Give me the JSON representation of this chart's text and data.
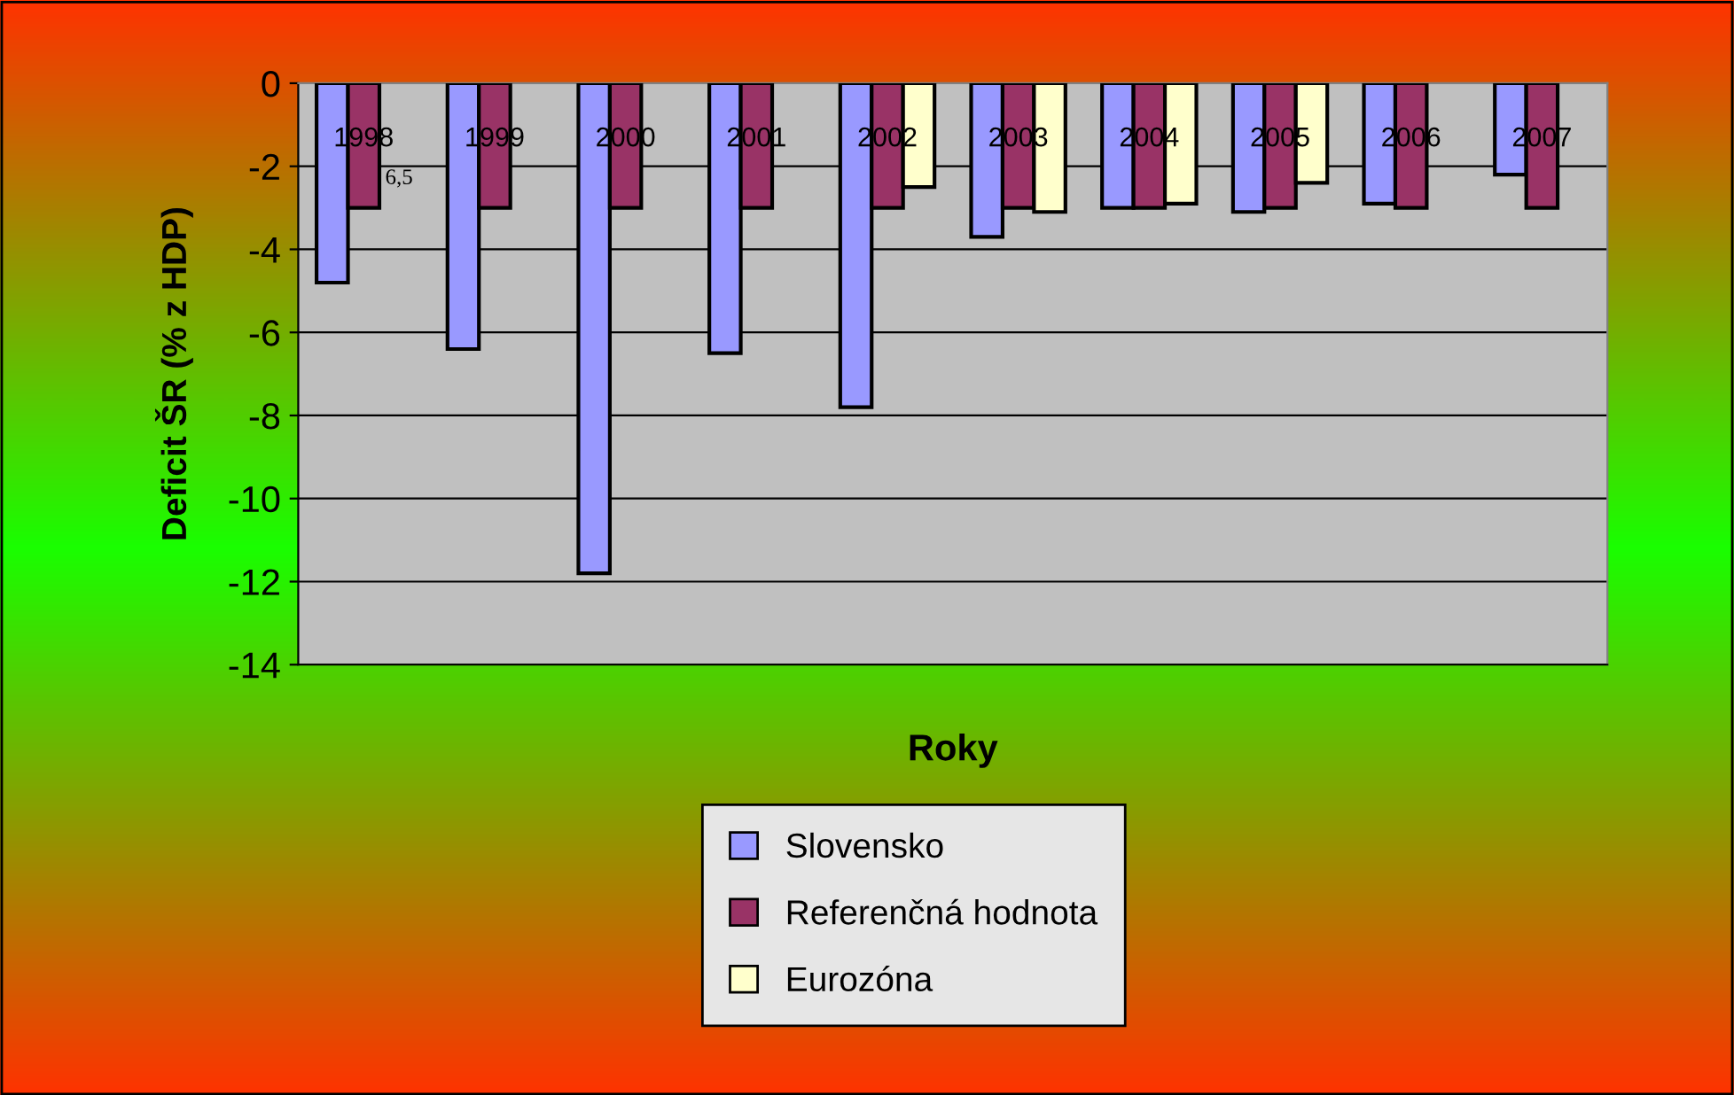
{
  "chart_data": {
    "type": "bar",
    "xlabel": "Roky",
    "ylabel": "Deficit ŠR (% z HDP)",
    "categories": [
      "1998",
      "1999",
      "2000",
      "2001",
      "2002",
      "2003",
      "2004",
      "2005",
      "2006",
      "2007"
    ],
    "series": [
      {
        "name": "Slovensko",
        "color": "#9999ff",
        "values": [
          -4.8,
          -6.4,
          -11.8,
          -6.5,
          -7.8,
          -3.7,
          -3.0,
          -3.1,
          -2.9,
          -2.2
        ]
      },
      {
        "name": "Referenčná hodnota",
        "color": "#993366",
        "values": [
          -3,
          -3,
          -3,
          -3,
          -3,
          -3,
          -3,
          -3,
          -3,
          -3
        ]
      },
      {
        "name": "Eurozóna",
        "color": "#ffffcc",
        "values": [
          null,
          null,
          null,
          null,
          -2.5,
          -3.1,
          -2.9,
          -2.4,
          null,
          null
        ]
      }
    ],
    "ylim": [
      -14,
      0
    ],
    "yticks": [
      -14,
      -12,
      -10,
      -8,
      -6,
      -4,
      -2,
      0
    ],
    "grid": "y",
    "legend": "bottom",
    "annotations": [
      "6,5"
    ]
  }
}
